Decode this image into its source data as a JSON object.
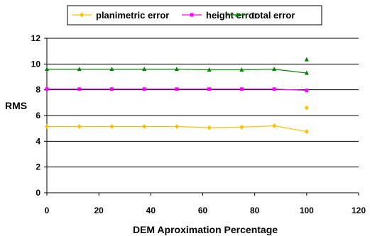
{
  "chart_data": {
    "type": "line",
    "title": "",
    "xlabel": "DEM Aproximation Percentage",
    "ylabel": "RMS",
    "xlim": [
      0,
      120
    ],
    "ylim": [
      0,
      12
    ],
    "x_ticks": [
      0,
      20,
      40,
      60,
      80,
      100,
      120
    ],
    "y_ticks": [
      0,
      2,
      4,
      6,
      8,
      10,
      12
    ],
    "grid": "horizontal",
    "legend_position": "top",
    "series": [
      {
        "name": "planimetric error",
        "color": "#FFC000",
        "marker": "diamond",
        "points": [
          [
            0,
            5.15
          ],
          [
            12.5,
            5.15
          ],
          [
            25,
            5.15
          ],
          [
            37.5,
            5.15
          ],
          [
            50,
            5.15
          ],
          [
            62.5,
            5.05
          ],
          [
            75,
            5.1
          ],
          [
            87.5,
            5.2
          ],
          [
            100,
            4.75
          ]
        ],
        "extra_points": [
          [
            100,
            6.6
          ]
        ]
      },
      {
        "name": "height error",
        "color": "#FF00FF",
        "marker": "square",
        "points": [
          [
            0,
            8.05
          ],
          [
            12.5,
            8.05
          ],
          [
            25,
            8.05
          ],
          [
            37.5,
            8.05
          ],
          [
            50,
            8.05
          ],
          [
            62.5,
            8.05
          ],
          [
            75,
            8.05
          ],
          [
            87.5,
            8.05
          ],
          [
            100,
            7.95
          ]
        ],
        "extra_points": []
      },
      {
        "name": "total error",
        "color": "#008000",
        "marker": "triangle",
        "points": [
          [
            0,
            9.6
          ],
          [
            12.5,
            9.6
          ],
          [
            25,
            9.6
          ],
          [
            37.5,
            9.6
          ],
          [
            50,
            9.6
          ],
          [
            62.5,
            9.55
          ],
          [
            75,
            9.55
          ],
          [
            87.5,
            9.6
          ],
          [
            100,
            9.3
          ]
        ],
        "extra_points": [
          [
            100,
            10.35
          ]
        ]
      }
    ]
  }
}
